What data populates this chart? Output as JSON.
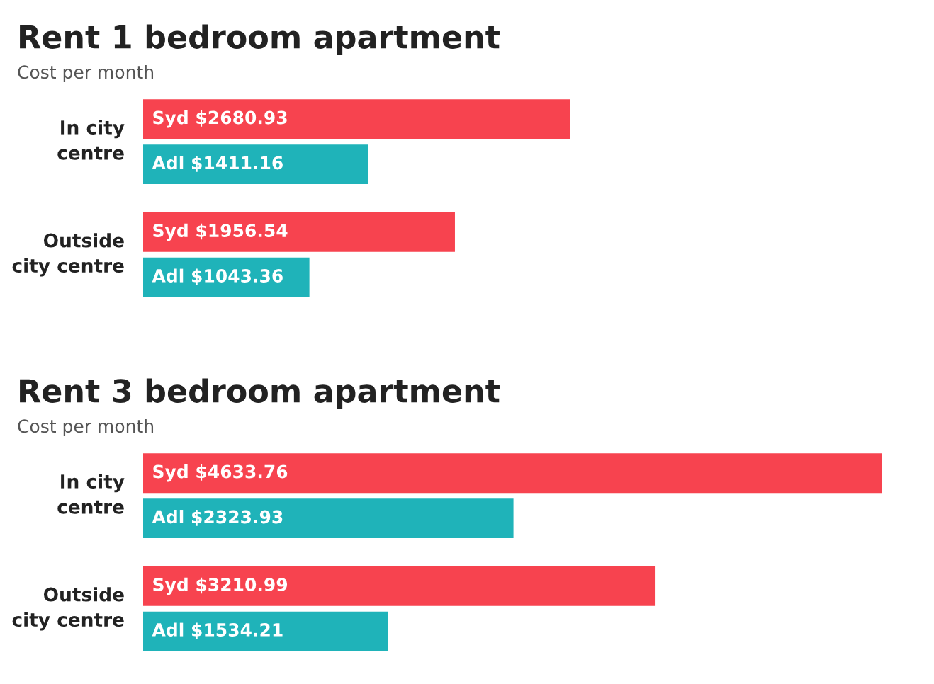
{
  "chart_data": [
    {
      "type": "bar",
      "orientation": "horizontal",
      "title": "Rent 1 bedroom apartment",
      "subtitle": "Cost per month",
      "categories": [
        "In city\ncentre",
        "Outside\ncity centre"
      ],
      "series": [
        {
          "color": "#f7434f",
          "values": [
            2680.93,
            1956.54
          ],
          "value_labels": [
            "Syd $2680.93",
            "Syd $1956.54"
          ]
        },
        {
          "color": "#1fb3b9",
          "values": [
            1411.16,
            1043.36
          ],
          "value_labels": [
            "Adl $1411.16",
            "Adl $1043.36"
          ]
        }
      ]
    },
    {
      "type": "bar",
      "orientation": "horizontal",
      "title": "Rent 3 bedroom apartment",
      "subtitle": "Cost per month",
      "categories": [
        "In city\ncentre",
        "Outside\ncity centre"
      ],
      "series": [
        {
          "color": "#f7434f",
          "values": [
            4633.76,
            3210.99
          ],
          "value_labels": [
            "Syd $4633.76",
            "Syd $3210.99"
          ]
        },
        {
          "color": "#1fb3b9",
          "values": [
            2323.93,
            1534.21
          ],
          "value_labels": [
            "Adl $2323.93",
            "Adl $1534.21"
          ]
        }
      ]
    }
  ]
}
